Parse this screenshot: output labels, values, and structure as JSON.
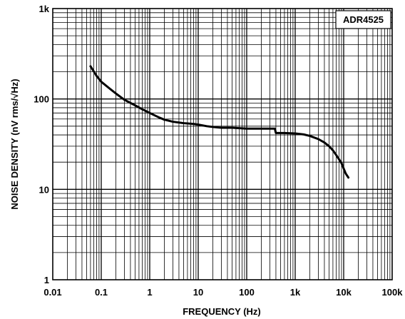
{
  "chart_data": {
    "type": "line",
    "title": "",
    "xlabel": "FREQUENCY (Hz)",
    "ylabel": "NOISE DENSITY (nV rms/√Hz)",
    "x_scale": "log",
    "y_scale": "log",
    "xlim": [
      0.01,
      100000
    ],
    "ylim": [
      1,
      1000
    ],
    "x_ticks": [
      {
        "value": 0.01,
        "label": "0.01"
      },
      {
        "value": 0.1,
        "label": "0.1"
      },
      {
        "value": 1,
        "label": "1"
      },
      {
        "value": 10,
        "label": "10"
      },
      {
        "value": 100,
        "label": "100"
      },
      {
        "value": 1000,
        "label": "1k"
      },
      {
        "value": 10000,
        "label": "10k"
      },
      {
        "value": 100000,
        "label": "100k"
      }
    ],
    "y_ticks": [
      {
        "value": 1,
        "label": "1"
      },
      {
        "value": 10,
        "label": "10"
      },
      {
        "value": 100,
        "label": "100"
      },
      {
        "value": 1000,
        "label": "1k"
      }
    ],
    "grid": true,
    "legend": {
      "label": "ADR4525",
      "placement": "top-right"
    },
    "series": [
      {
        "name": "ADR4525",
        "color": "#000000",
        "points": [
          [
            0.06,
            230
          ],
          [
            0.08,
            180
          ],
          [
            0.1,
            155
          ],
          [
            0.15,
            130
          ],
          [
            0.2,
            115
          ],
          [
            0.3,
            98
          ],
          [
            0.5,
            85
          ],
          [
            0.7,
            77
          ],
          [
            1,
            70
          ],
          [
            1.5,
            63
          ],
          [
            2,
            59
          ],
          [
            3,
            56
          ],
          [
            5,
            54
          ],
          [
            8,
            53
          ],
          [
            10,
            52
          ],
          [
            15,
            50
          ],
          [
            20,
            49
          ],
          [
            30,
            48
          ],
          [
            50,
            48
          ],
          [
            100,
            47
          ],
          [
            200,
            47
          ],
          [
            380,
            47
          ],
          [
            400,
            42
          ],
          [
            600,
            42
          ],
          [
            1000,
            41.5
          ],
          [
            1500,
            40.5
          ],
          [
            2000,
            39
          ],
          [
            3000,
            36
          ],
          [
            4000,
            33
          ],
          [
            5000,
            30
          ],
          [
            6000,
            27
          ],
          [
            7000,
            24
          ],
          [
            8000,
            21.5
          ],
          [
            9000,
            19.5
          ],
          [
            10000,
            17
          ],
          [
            11000,
            15
          ],
          [
            12500,
            13.5
          ]
        ]
      }
    ]
  }
}
